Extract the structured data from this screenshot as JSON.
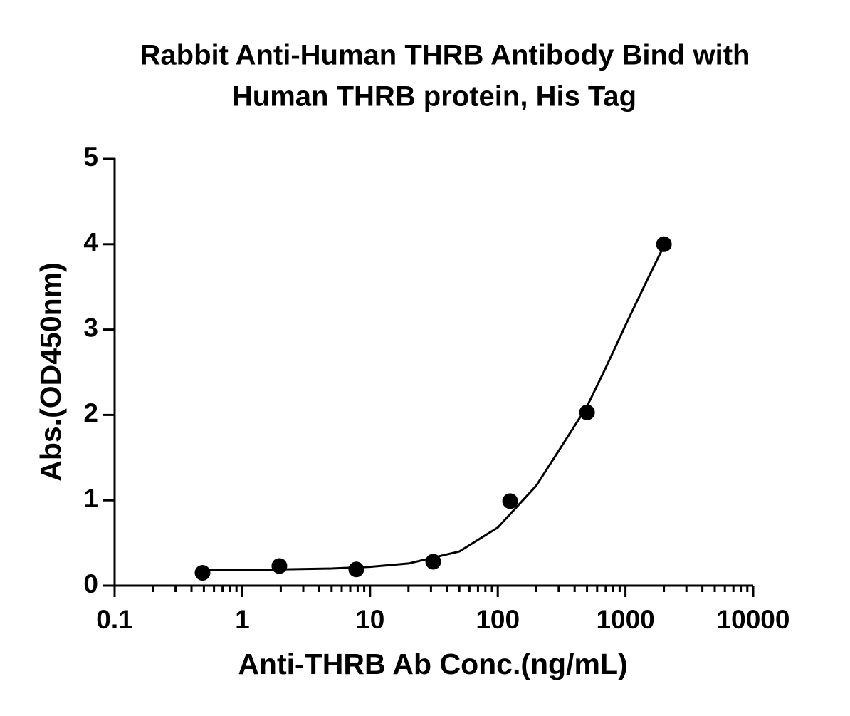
{
  "chart_data": {
    "type": "scatter",
    "title": [
      "Rabbit Anti-Human THRB Antibody Bind with",
      "Human THRB protein, His Tag"
    ],
    "x_label": "Anti-THRB Ab Conc.(ng/mL)",
    "y_label": "Abs.(OD450nm)",
    "x_scale": "log",
    "xlim": [
      0.1,
      10000
    ],
    "xticks": [
      0.1,
      1,
      10,
      100,
      1000,
      10000
    ],
    "ylim": [
      0,
      5
    ],
    "yticks": [
      0,
      1,
      2,
      3,
      4,
      5
    ],
    "grid": false,
    "series": [
      {
        "mode": "markers",
        "color": "#000000",
        "x": [
          0.488,
          1.95,
          7.8,
          31.25,
          125,
          500,
          2000
        ],
        "values": [
          0.15,
          0.23,
          0.19,
          0.28,
          0.99,
          2.03,
          4.0
        ]
      },
      {
        "mode": "line",
        "color": "#000000",
        "x": [
          0.5,
          1,
          2,
          5,
          10,
          20,
          50,
          100,
          200,
          300,
          500,
          700,
          1000,
          1500,
          2000
        ],
        "values": [
          0.18,
          0.18,
          0.19,
          0.2,
          0.22,
          0.26,
          0.4,
          0.68,
          1.17,
          1.58,
          2.1,
          2.55,
          3.05,
          3.6,
          3.98
        ]
      }
    ]
  }
}
